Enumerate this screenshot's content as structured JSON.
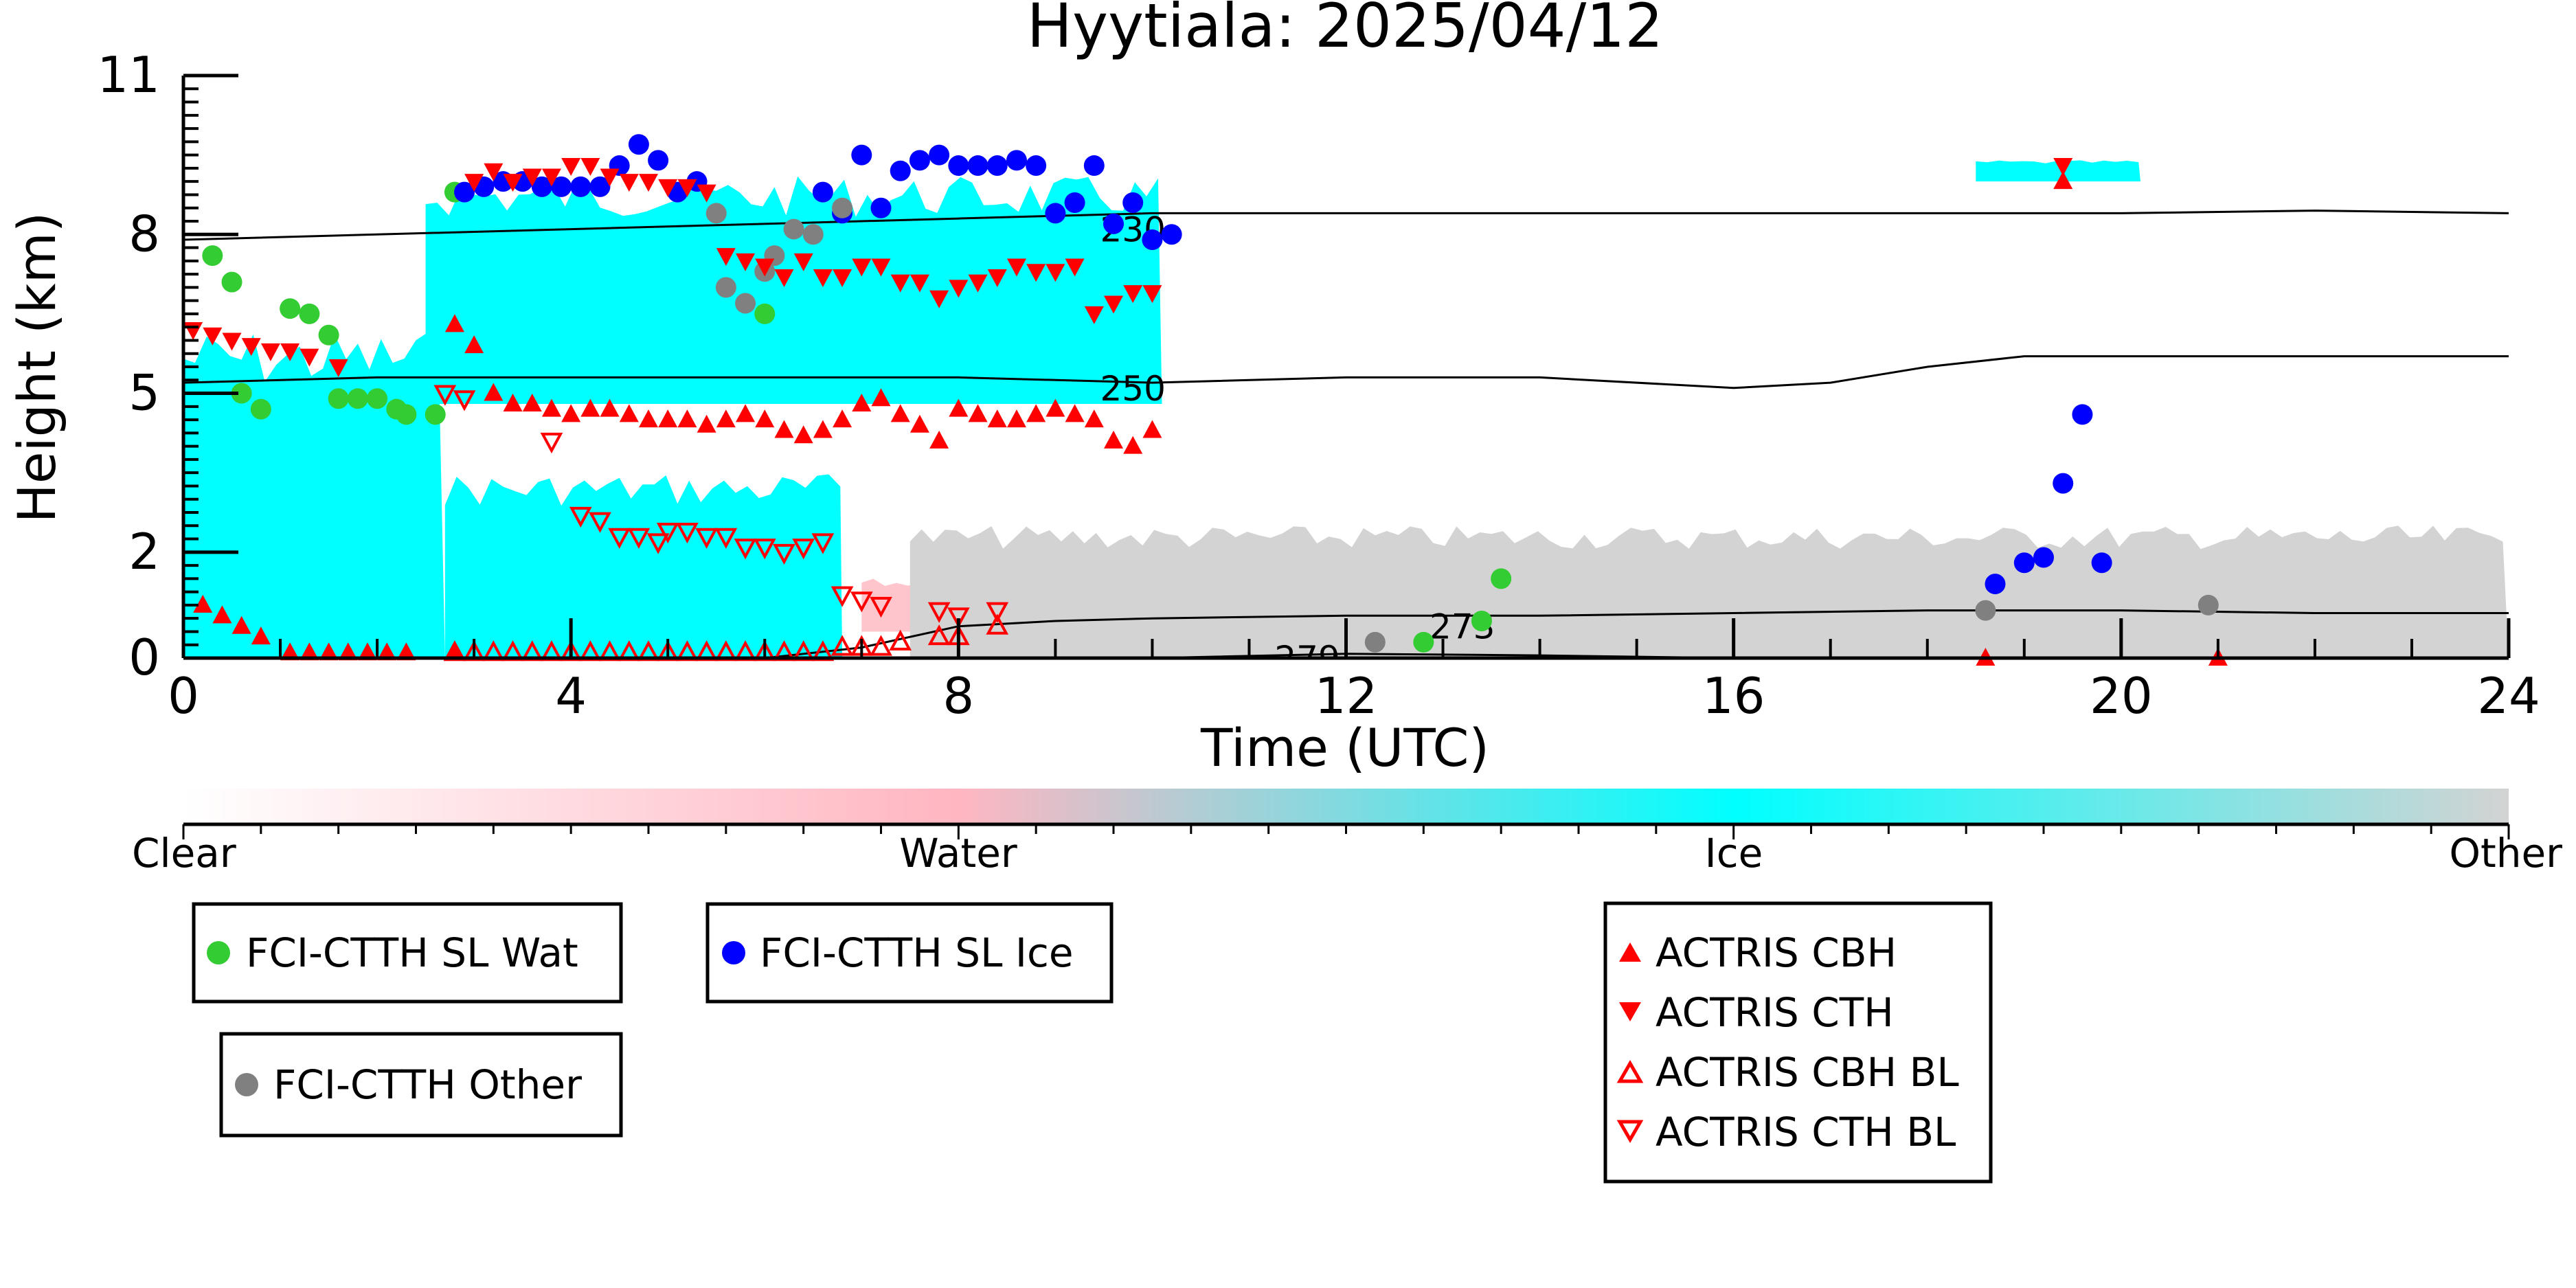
{
  "chart_data": {
    "type": "scatter",
    "title": "Hyytiala: 2025/04/12",
    "xlabel": "Time (UTC)",
    "ylabel": "Height (km)",
    "xlim": [
      0,
      24
    ],
    "ylim": [
      0,
      11
    ],
    "x_ticks": [
      0,
      4,
      8,
      12,
      16,
      20,
      24
    ],
    "y_ticks": [
      0,
      2,
      5,
      8,
      11
    ],
    "y_tick_labels": [
      "0",
      "2",
      "5",
      "8",
      "11"
    ],
    "colorbar": {
      "labels": [
        "Clear",
        "Water",
        "Ice",
        "Other"
      ],
      "colors": [
        "#ffffff",
        "#ffb6c1",
        "#00ffff",
        "#d3d3d3"
      ]
    },
    "background_classification": [
      {
        "class": "Ice",
        "x0": 0.0,
        "x1": 2.7,
        "ybot": 0.0,
        "ytop": 6.2
      },
      {
        "class": "Ice",
        "x0": 2.7,
        "x1": 6.8,
        "ybot": 0.0,
        "ytop": 3.5
      },
      {
        "class": "Ice",
        "x0": 2.5,
        "x1": 10.1,
        "ybot": 4.8,
        "ytop": 9.1
      },
      {
        "class": "Ice",
        "x0": 18.5,
        "x1": 20.2,
        "ybot": 9.0,
        "ytop": 9.4
      },
      {
        "class": "Water",
        "x0": 7.0,
        "x1": 14.0,
        "ybot": 0.5,
        "ytop": 1.5
      },
      {
        "class": "Other",
        "x0": 7.5,
        "x1": 24.0,
        "ybot": 0.0,
        "ytop": 2.5
      }
    ],
    "isotherms": [
      {
        "label": "230",
        "x": [
          0,
          2,
          4,
          6,
          8,
          10,
          12,
          14,
          16,
          18,
          20,
          22,
          24
        ],
        "y": [
          7.9,
          8.0,
          8.1,
          8.2,
          8.3,
          8.4,
          8.4,
          8.4,
          8.4,
          8.4,
          8.4,
          8.45,
          8.4
        ]
      },
      {
        "label": "250",
        "x": [
          0,
          2,
          4,
          6,
          8,
          10,
          12,
          14,
          16,
          17,
          18,
          19,
          20,
          22,
          24
        ],
        "y": [
          5.2,
          5.3,
          5.3,
          5.3,
          5.3,
          5.2,
          5.3,
          5.3,
          5.1,
          5.2,
          5.5,
          5.7,
          5.7,
          5.7,
          5.7
        ]
      },
      {
        "label": "273",
        "x": [
          0,
          6,
          7,
          8,
          9,
          10,
          12,
          14,
          16,
          18,
          20,
          22,
          24
        ],
        "y": [
          0.0,
          0.0,
          0.2,
          0.6,
          0.7,
          0.75,
          0.8,
          0.8,
          0.85,
          0.9,
          0.9,
          0.85,
          0.85
        ]
      },
      {
        "label": "279",
        "x": [
          10,
          12,
          14,
          16
        ],
        "y": [
          0.0,
          0.08,
          0.05,
          0.0
        ]
      }
    ],
    "series": [
      {
        "name": "FCI-CTTH SL Wat",
        "color": "#33cc33",
        "marker": "circle",
        "x": [
          0.3,
          0.5,
          1.1,
          1.3,
          1.5,
          0.6,
          0.8,
          1.6,
          1.8,
          2.0,
          2.2,
          2.3,
          2.6,
          2.8,
          6.0,
          12.8,
          13.4,
          13.6
        ],
        "y": [
          7.6,
          7.1,
          6.6,
          6.5,
          6.1,
          5.0,
          4.7,
          4.9,
          4.9,
          4.9,
          4.7,
          4.6,
          4.6,
          8.8,
          6.5,
          0.3,
          0.7,
          1.5
        ]
      },
      {
        "name": "FCI-CTTH SL Ice",
        "color": "#0000ff",
        "marker": "circle",
        "x": [
          2.9,
          3.1,
          3.3,
          3.5,
          3.7,
          3.9,
          4.1,
          4.3,
          4.5,
          4.7,
          4.9,
          5.1,
          5.3,
          6.6,
          6.8,
          7.0,
          7.2,
          7.4,
          7.6,
          7.8,
          8.0,
          8.2,
          8.4,
          8.6,
          8.8,
          9.0,
          9.2,
          9.4,
          9.6,
          9.8,
          10.0,
          10.2,
          18.7,
          19.0,
          19.2,
          19.4,
          19.6,
          19.8
        ],
        "y": [
          8.8,
          8.9,
          9.0,
          9.0,
          8.9,
          8.9,
          8.9,
          8.9,
          9.3,
          9.7,
          9.4,
          8.8,
          9.0,
          8.8,
          8.4,
          9.5,
          8.5,
          9.2,
          9.4,
          9.5,
          9.3,
          9.3,
          9.3,
          9.4,
          9.3,
          8.4,
          8.6,
          9.3,
          8.2,
          8.6,
          7.9,
          8.0,
          1.4,
          1.8,
          1.9,
          3.3,
          4.6,
          1.8
        ]
      },
      {
        "name": "FCI-CTTH Other",
        "color": "#808080",
        "marker": "circle",
        "x": [
          5.5,
          5.6,
          5.8,
          6.0,
          6.1,
          6.3,
          6.5,
          6.8,
          12.3,
          18.6,
          20.9
        ],
        "y": [
          8.4,
          7.0,
          6.7,
          7.3,
          7.6,
          8.1,
          8.0,
          8.5,
          0.3,
          0.9,
          1.0
        ]
      },
      {
        "name": "ACTRIS CBH",
        "color": "#ff0000",
        "marker": "triangle-up",
        "x": [
          0.2,
          0.4,
          0.6,
          0.8,
          1.1,
          1.3,
          1.5,
          1.7,
          1.9,
          2.1,
          2.3,
          2.8,
          3.0,
          3.2,
          3.4,
          3.6,
          3.8,
          4.0,
          4.2,
          4.4,
          4.6,
          4.8,
          5.0,
          5.2,
          5.4,
          5.6,
          5.8,
          6.0,
          6.2,
          6.4,
          6.6,
          6.8,
          7.0,
          7.2,
          7.4,
          7.6,
          7.8,
          8.0,
          8.2,
          8.4,
          8.6,
          8.8,
          9.0,
          9.2,
          9.4,
          9.6,
          9.8,
          10.0,
          2.8,
          19.4,
          18.6,
          21.0
        ],
        "y": [
          1.0,
          0.8,
          0.6,
          0.4,
          0.1,
          0.1,
          0.1,
          0.1,
          0.1,
          0.1,
          0.1,
          6.3,
          5.9,
          5.0,
          4.8,
          4.8,
          4.7,
          4.6,
          4.7,
          4.7,
          4.6,
          4.5,
          4.5,
          4.5,
          4.4,
          4.5,
          4.6,
          4.5,
          4.3,
          4.2,
          4.3,
          4.5,
          4.8,
          4.9,
          4.6,
          4.4,
          4.1,
          4.7,
          4.6,
          4.5,
          4.5,
          4.6,
          4.7,
          4.6,
          4.5,
          4.1,
          4.0,
          4.3,
          0.1,
          9.0,
          0.0,
          0.0
        ]
      },
      {
        "name": "ACTRIS CTH",
        "color": "#ff0000",
        "marker": "triangle-down",
        "x": [
          0.1,
          0.3,
          0.5,
          0.7,
          0.9,
          1.1,
          1.3,
          1.6,
          3.0,
          3.2,
          3.4,
          3.6,
          3.8,
          4.0,
          4.2,
          4.4,
          4.6,
          4.8,
          5.0,
          5.2,
          5.4,
          5.6,
          5.8,
          6.0,
          6.2,
          6.4,
          6.6,
          6.8,
          7.0,
          7.2,
          7.4,
          7.6,
          7.8,
          8.0,
          8.2,
          8.4,
          8.6,
          8.8,
          9.0,
          9.2,
          9.4,
          9.6,
          9.8,
          10.0,
          19.4
        ],
        "y": [
          6.2,
          6.1,
          6.0,
          5.9,
          5.8,
          5.8,
          5.7,
          5.5,
          9.0,
          9.2,
          9.0,
          9.1,
          9.1,
          9.3,
          9.3,
          9.1,
          9.0,
          9.0,
          8.9,
          8.9,
          8.8,
          7.6,
          7.5,
          7.4,
          7.2,
          7.5,
          7.2,
          7.2,
          7.4,
          7.4,
          7.1,
          7.1,
          6.8,
          7.0,
          7.1,
          7.2,
          7.4,
          7.3,
          7.3,
          7.4,
          6.5,
          6.7,
          6.9,
          6.9,
          9.3
        ]
      },
      {
        "name": "ACTRIS CBH BL",
        "color": "#ff0000",
        "marker": "triangle-up-open",
        "x": [
          2.8,
          3.0,
          3.2,
          3.4,
          3.6,
          3.8,
          4.0,
          4.2,
          4.4,
          4.6,
          4.8,
          5.0,
          5.2,
          5.4,
          5.6,
          5.8,
          6.0,
          6.2,
          6.4,
          6.6,
          6.8,
          7.0,
          7.2,
          7.4,
          7.8,
          8.0,
          8.4
        ],
        "y": [
          0.1,
          0.1,
          0.1,
          0.1,
          0.1,
          0.1,
          0.1,
          0.1,
          0.1,
          0.1,
          0.1,
          0.1,
          0.1,
          0.1,
          0.1,
          0.1,
          0.1,
          0.1,
          0.1,
          0.1,
          0.2,
          0.2,
          0.2,
          0.3,
          0.4,
          0.4,
          0.6
        ]
      },
      {
        "name": "ACTRIS CTH BL",
        "color": "#ff0000",
        "marker": "triangle-down-open",
        "x": [
          2.7,
          2.9,
          3.8,
          4.1,
          4.3,
          4.5,
          4.7,
          4.9,
          5.0,
          5.2,
          5.4,
          5.6,
          5.8,
          6.0,
          6.2,
          6.4,
          6.6,
          6.8,
          7.0,
          7.2,
          7.8,
          8.0,
          8.4
        ],
        "y": [
          5.0,
          4.9,
          4.1,
          2.7,
          2.6,
          2.3,
          2.3,
          2.2,
          2.4,
          2.4,
          2.3,
          2.3,
          2.1,
          2.1,
          2.0,
          2.1,
          2.2,
          1.2,
          1.1,
          1.0,
          0.9,
          0.8,
          0.9
        ]
      }
    ],
    "legends": [
      {
        "entries": [
          "FCI-CTTH SL Wat"
        ]
      },
      {
        "entries": [
          "FCI-CTTH SL Ice"
        ]
      },
      {
        "entries": [
          "FCI-CTTH Other"
        ]
      },
      {
        "entries": [
          "ACTRIS CBH",
          "ACTRIS CTH",
          "ACTRIS CBH BL",
          "ACTRIS CTH BL"
        ]
      }
    ]
  }
}
